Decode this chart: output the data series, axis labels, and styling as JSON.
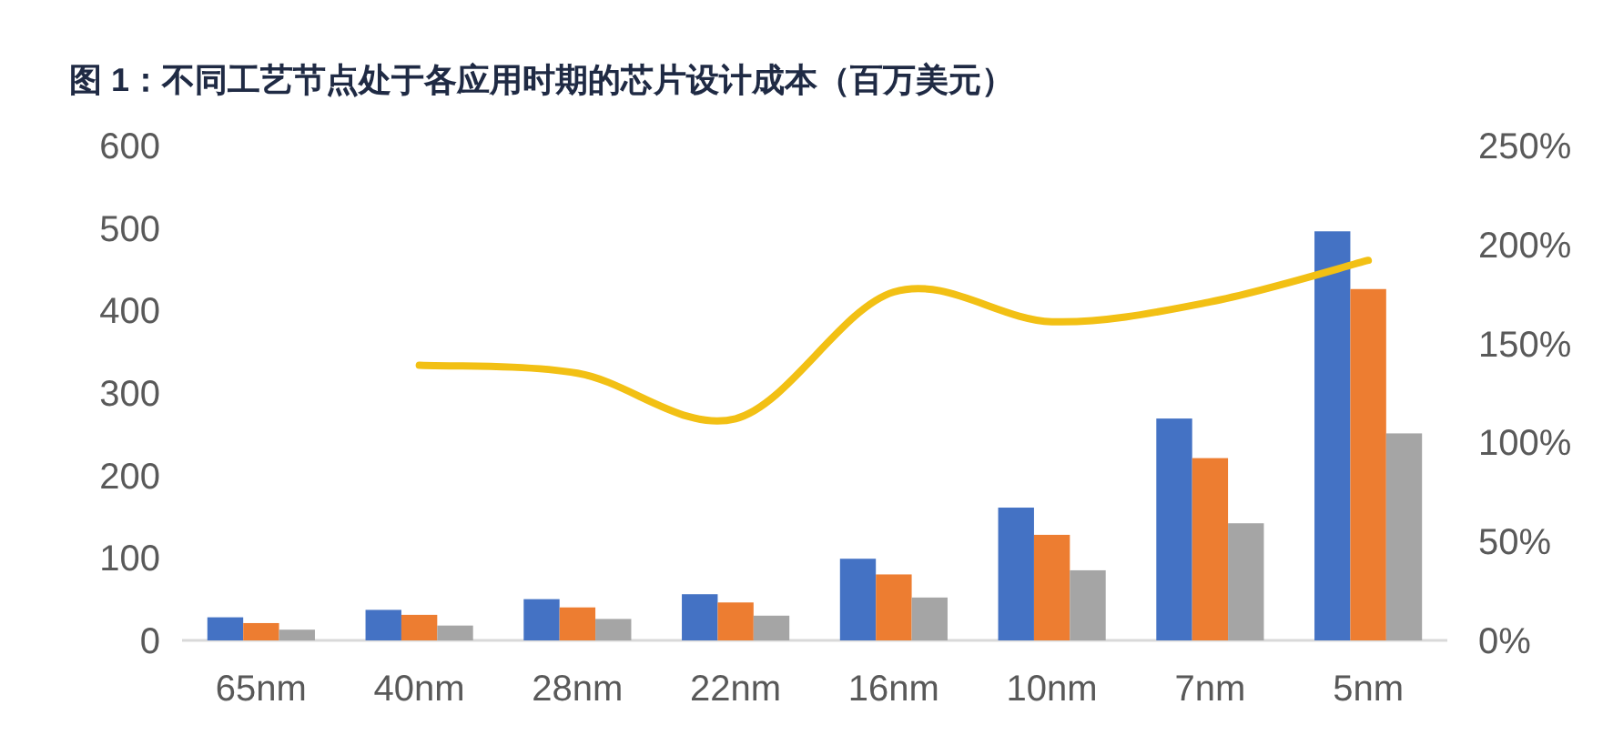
{
  "chart_data": {
    "type": "bar",
    "title": "图 1：不同工艺节点处于各应用时期的芯片设计成本（百万美元）",
    "categories": [
      "65nm",
      "40nm",
      "28nm",
      "22nm",
      "16nm",
      "10nm",
      "7nm",
      "5nm"
    ],
    "series": [
      {
        "color": "#4472c4",
        "values": [
          28,
          37,
          50,
          56,
          99,
          161,
          269,
          496
        ]
      },
      {
        "color": "#ed7d31",
        "values": [
          21,
          31,
          40,
          46,
          80,
          128,
          221,
          426
        ]
      },
      {
        "color": "#a5a5a5",
        "values": [
          13,
          18,
          26,
          30,
          52,
          85,
          142,
          251
        ]
      },
      {
        "type": "line",
        "axis": "y2",
        "color": "#f2c014",
        "values": [
          null,
          139,
          135,
          112,
          176,
          161,
          171,
          192
        ]
      }
    ],
    "ylim": [
      0,
      600
    ],
    "yticks": [
      0,
      100,
      200,
      300,
      400,
      500,
      600
    ],
    "y2lim": [
      0,
      250
    ],
    "y2ticks": [
      {
        "value": 0,
        "label": "0%"
      },
      {
        "value": 50,
        "label": "50%"
      },
      {
        "value": 100,
        "label": "100%"
      },
      {
        "value": 150,
        "label": "150%"
      },
      {
        "value": 200,
        "label": "200%"
      },
      {
        "value": 250,
        "label": "250%"
      }
    ],
    "grid": false
  }
}
